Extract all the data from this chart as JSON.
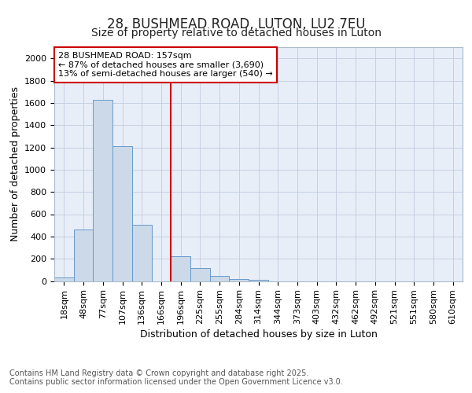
{
  "title_line1": "28, BUSHMEAD ROAD, LUTON, LU2 7EU",
  "title_line2": "Size of property relative to detached houses in Luton",
  "xlabel": "Distribution of detached houses by size in Luton",
  "ylabel": "Number of detached properties",
  "categories": [
    "18sqm",
    "48sqm",
    "77sqm",
    "107sqm",
    "136sqm",
    "166sqm",
    "196sqm",
    "225sqm",
    "255sqm",
    "284sqm",
    "314sqm",
    "344sqm",
    "373sqm",
    "403sqm",
    "432sqm",
    "462sqm",
    "492sqm",
    "521sqm",
    "551sqm",
    "580sqm",
    "610sqm"
  ],
  "values": [
    30,
    460,
    1625,
    1210,
    505,
    0,
    220,
    115,
    45,
    20,
    10,
    0,
    0,
    0,
    0,
    0,
    0,
    0,
    0,
    0,
    0
  ],
  "bar_color": "#ccd9e8",
  "bar_edge_color": "#6699cc",
  "vline_color": "#cc0000",
  "annotation_text": "28 BUSHMEAD ROAD: 157sqm\n← 87% of detached houses are smaller (3,690)\n13% of semi-detached houses are larger (540) →",
  "annotation_box_color": "#ffffff",
  "annotation_box_edge": "#cc0000",
  "ylim": [
    0,
    2100
  ],
  "yticks": [
    0,
    200,
    400,
    600,
    800,
    1000,
    1200,
    1400,
    1600,
    1800,
    2000
  ],
  "bg_color": "#ffffff",
  "plot_bg_color": "#e8eef8",
  "footer_line1": "Contains HM Land Registry data © Crown copyright and database right 2025.",
  "footer_line2": "Contains public sector information licensed under the Open Government Licence v3.0.",
  "title_fontsize": 12,
  "subtitle_fontsize": 10,
  "axis_label_fontsize": 9,
  "tick_fontsize": 8,
  "annotation_fontsize": 8,
  "footer_fontsize": 7,
  "vline_index": 5
}
